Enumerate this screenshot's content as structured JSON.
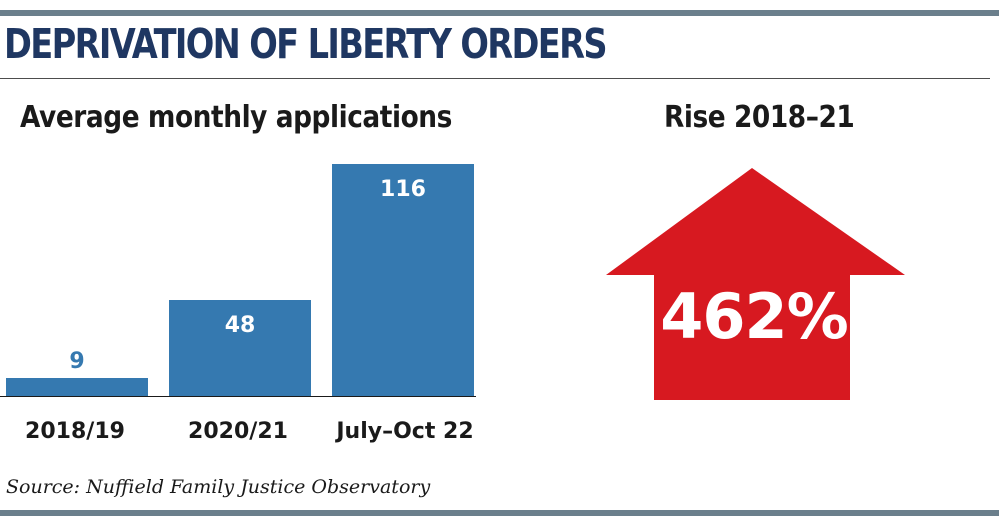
{
  "title": "DEPRIVATION OF LIBERTY ORDERS",
  "source": "Source: Nuffield Family Justice Observatory",
  "colors": {
    "title": "#1f3762",
    "bar": "#3579b0",
    "arrow": "#d71920",
    "rule": "#6b7f8c"
  },
  "chart_data": [
    {
      "type": "bar",
      "title": "Average monthly applications",
      "categories": [
        "2018/19",
        "2020/21",
        "July–Oct 22"
      ],
      "values": [
        9,
        48,
        116
      ],
      "data_labels": [
        "9",
        "48",
        "116"
      ],
      "ylim": [
        0,
        116
      ],
      "grid": false
    }
  ],
  "rise": {
    "label": "Rise 2018–21",
    "value": "462%",
    "icon": "up-arrow-icon"
  }
}
